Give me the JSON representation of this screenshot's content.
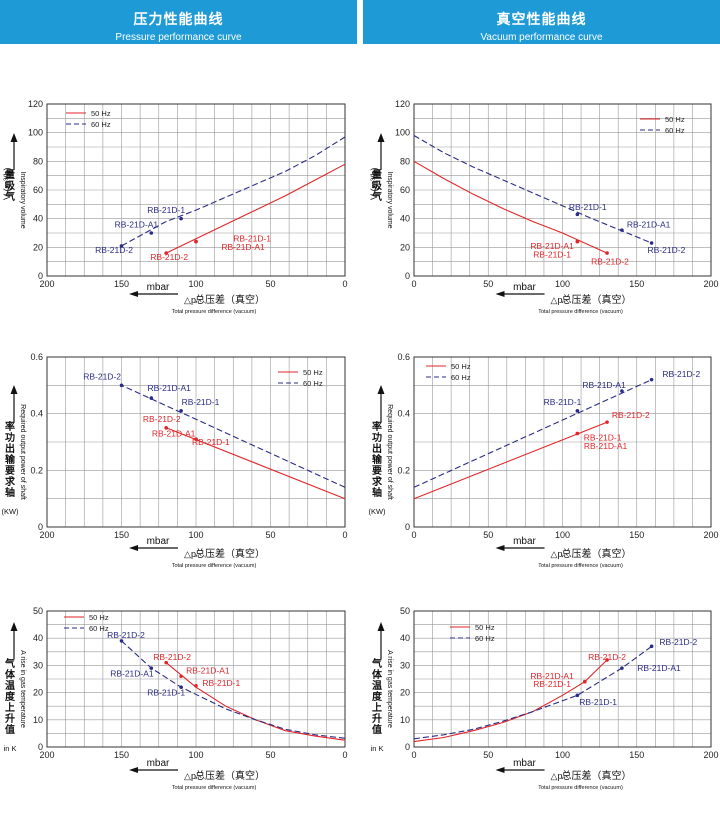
{
  "header_left": {
    "title": "压力性能曲线",
    "subtitle": "Pressure performance curve"
  },
  "header_right": {
    "title": "真空性能曲线",
    "subtitle": "Vacuum performance curve"
  },
  "x_label": {
    "unit": "mbar",
    "symbol": "△p",
    "cn": "总压差（真空）",
    "en": "Total pressure difference (vacuum)"
  },
  "colors": {
    "hz50": "#E0262A",
    "hz60": "#2A2B86",
    "grid": "#999999",
    "header": "#1E9AD6"
  },
  "chart_data": [
    {
      "id": "pressure-volume",
      "type": "line",
      "x_reversed": true,
      "xlim": [
        0,
        200
      ],
      "xticks": [
        200,
        150,
        100,
        50,
        0
      ],
      "ylim": [
        0,
        120
      ],
      "yticks": [
        0,
        20,
        40,
        60,
        80,
        100,
        120
      ],
      "ylabel_cn": "量吸气",
      "ylabel_unit": "V (m³/h)",
      "ylabel_en": "Inspiratory volume",
      "legend": [
        "50 Hz",
        "60 Hz"
      ],
      "legend_position": "top-left",
      "series": [
        {
          "name": "50 Hz",
          "x": [
            0,
            20,
            40,
            60,
            80,
            100,
            120
          ],
          "y": [
            78,
            67,
            56,
            46,
            36,
            26,
            16
          ]
        },
        {
          "name": "60 Hz",
          "x": [
            0,
            20,
            40,
            60,
            80,
            100,
            120,
            150
          ],
          "y": [
            97,
            84,
            73,
            64,
            55,
            46,
            38,
            21
          ]
        }
      ],
      "points": [
        {
          "label": "RB-21D-1",
          "x": 100,
          "y": 24,
          "series": "50 Hz",
          "lx": 75,
          "ly": 24,
          "anchor": "start"
        },
        {
          "label": "RB-21D-A1",
          "x": 100,
          "y": 24,
          "series": "50 Hz",
          "lx": 83,
          "ly": 18,
          "anchor": "start"
        },
        {
          "label": "RB-21D-2",
          "x": 120,
          "y": 16,
          "series": "50 Hz",
          "lx": 118,
          "ly": 11,
          "anchor": "middle"
        },
        {
          "label": "RB-21D-1",
          "x": 110,
          "y": 40,
          "series": "60 Hz",
          "lx": 120,
          "ly": 44,
          "anchor": "middle"
        },
        {
          "label": "RB-21D-A1",
          "x": 130,
          "y": 30,
          "series": "60 Hz",
          "lx": 140,
          "ly": 34,
          "anchor": "middle"
        },
        {
          "label": "RB-21D-2",
          "x": 150,
          "y": 21,
          "series": "60 Hz",
          "lx": 155,
          "ly": 16,
          "anchor": "middle"
        }
      ]
    },
    {
      "id": "vacuum-volume",
      "type": "line",
      "x_reversed": false,
      "xlim": [
        0,
        200
      ],
      "xticks": [
        0,
        50,
        100,
        150,
        200
      ],
      "ylim": [
        0,
        120
      ],
      "yticks": [
        0,
        20,
        40,
        60,
        80,
        100,
        120
      ],
      "ylabel_cn": "量吸气",
      "ylabel_unit": "V (m³/h)",
      "ylabel_en": "Inspiratory volume",
      "legend": [
        "50 Hz",
        "60 Hz"
      ],
      "legend_position": "top-right",
      "series": [
        {
          "name": "50 Hz",
          "x": [
            0,
            20,
            40,
            60,
            80,
            100,
            130
          ],
          "y": [
            80,
            68,
            57,
            47,
            38,
            30,
            16
          ]
        },
        {
          "name": "60 Hz",
          "x": [
            0,
            20,
            40,
            60,
            80,
            100,
            120,
            160
          ],
          "y": [
            98,
            86,
            76,
            67,
            58,
            49,
            40,
            23
          ]
        }
      ],
      "points": [
        {
          "label": "RB-21D-A1",
          "x": 110,
          "y": 24,
          "series": "50 Hz",
          "lx": 93,
          "ly": 19,
          "anchor": "middle"
        },
        {
          "label": "RB-21D-1",
          "x": 110,
          "y": 24,
          "series": "50 Hz",
          "lx": 93,
          "ly": 13,
          "anchor": "middle"
        },
        {
          "label": "RB-21D-2",
          "x": 130,
          "y": 16,
          "series": "50 Hz",
          "lx": 132,
          "ly": 8,
          "anchor": "middle"
        },
        {
          "label": "RB-21D-1",
          "x": 110,
          "y": 43,
          "series": "60 Hz",
          "lx": 117,
          "ly": 46,
          "anchor": "middle"
        },
        {
          "label": "RB-21D-A1",
          "x": 140,
          "y": 32,
          "series": "60 Hz",
          "lx": 158,
          "ly": 34,
          "anchor": "middle"
        },
        {
          "label": "RB-21D-2",
          "x": 160,
          "y": 23,
          "series": "60 Hz",
          "lx": 170,
          "ly": 16,
          "anchor": "middle"
        }
      ]
    },
    {
      "id": "pressure-power",
      "type": "line",
      "x_reversed": true,
      "xlim": [
        0,
        200
      ],
      "xticks": [
        200,
        150,
        100,
        50,
        0
      ],
      "ylim": [
        0,
        0.6
      ],
      "yticks": [
        0,
        0.2,
        0.4,
        0.6
      ],
      "ylabel_cn": "率功出输要求轴",
      "ylabel_unit": "(KW)",
      "ylabel_en": "Required output power of shaft",
      "legend": [
        "50 Hz",
        "60 Hz"
      ],
      "legend_position": "top-right",
      "series": [
        {
          "name": "50 Hz",
          "x": [
            0,
            120
          ],
          "y": [
            0.1,
            0.35
          ]
        },
        {
          "name": "60 Hz",
          "x": [
            0,
            150
          ],
          "y": [
            0.14,
            0.5
          ]
        }
      ],
      "points": [
        {
          "label": "RB-21D-2",
          "x": 120,
          "y": 0.35,
          "series": "50 Hz",
          "lx": 123,
          "ly": 0.37,
          "anchor": "middle"
        },
        {
          "label": "RB-21D-A1",
          "x": 100,
          "y": 0.31,
          "series": "50 Hz",
          "lx": 115,
          "ly": 0.32,
          "anchor": "middle"
        },
        {
          "label": "RB-21D-1",
          "x": 100,
          "y": 0.31,
          "series": "50 Hz",
          "lx": 90,
          "ly": 0.29,
          "anchor": "middle"
        },
        {
          "label": "RB-21D-2",
          "x": 150,
          "y": 0.5,
          "series": "60 Hz",
          "lx": 163,
          "ly": 0.52,
          "anchor": "middle"
        },
        {
          "label": "RB-21D-A1",
          "x": 130,
          "y": 0.455,
          "series": "60 Hz",
          "lx": 118,
          "ly": 0.48,
          "anchor": "middle"
        },
        {
          "label": "RB-21D-1",
          "x": 110,
          "y": 0.41,
          "series": "60 Hz",
          "lx": 97,
          "ly": 0.43,
          "anchor": "middle"
        }
      ]
    },
    {
      "id": "vacuum-power",
      "type": "line",
      "x_reversed": false,
      "xlim": [
        0,
        200
      ],
      "xticks": [
        0,
        50,
        100,
        150,
        200
      ],
      "ylim": [
        0,
        0.6
      ],
      "yticks": [
        0,
        0.2,
        0.4,
        0.6
      ],
      "ylabel_cn": "率功出输要求轴",
      "ylabel_unit": "(KW)",
      "ylabel_en": "Required output power of shaft",
      "legend": [
        "50 Hz",
        "60 Hz"
      ],
      "legend_position": "top-left",
      "series": [
        {
          "name": "50 Hz",
          "x": [
            0,
            130
          ],
          "y": [
            0.1,
            0.37
          ]
        },
        {
          "name": "60 Hz",
          "x": [
            0,
            160
          ],
          "y": [
            0.14,
            0.52
          ]
        }
      ],
      "points": [
        {
          "label": "RB-21D-2",
          "x": 130,
          "y": 0.37,
          "series": "50 Hz",
          "lx": 146,
          "ly": 0.385,
          "anchor": "middle"
        },
        {
          "label": "RB-21D-1",
          "x": 110,
          "y": 0.33,
          "series": "50 Hz",
          "lx": 127,
          "ly": 0.305,
          "anchor": "middle"
        },
        {
          "label": "RB-21D-A1",
          "x": 110,
          "y": 0.33,
          "series": "50 Hz",
          "lx": 129,
          "ly": 0.275,
          "anchor": "middle"
        },
        {
          "label": "RB-21D-2",
          "x": 160,
          "y": 0.52,
          "series": "60 Hz",
          "lx": 180,
          "ly": 0.53,
          "anchor": "middle"
        },
        {
          "label": "RB-21D-A1",
          "x": 140,
          "y": 0.48,
          "series": "60 Hz",
          "lx": 128,
          "ly": 0.49,
          "anchor": "middle"
        },
        {
          "label": "RB-21D-1",
          "x": 110,
          "y": 0.41,
          "series": "60 Hz",
          "lx": 100,
          "ly": 0.43,
          "anchor": "middle"
        }
      ]
    },
    {
      "id": "pressure-temperature",
      "type": "line",
      "x_reversed": true,
      "xlim": [
        0,
        200
      ],
      "xticks": [
        200,
        150,
        100,
        50,
        0
      ],
      "ylim": [
        0,
        50
      ],
      "yticks": [
        0,
        10,
        20,
        30,
        40,
        50
      ],
      "ylabel_cn": "气体温度上升值",
      "ylabel_unit": "in K",
      "ylabel_en": "A rise in gas temperature",
      "legend": [
        "50 Hz",
        "60 Hz"
      ],
      "legend_position": "top-left",
      "series": [
        {
          "name": "50 Hz",
          "x": [
            0,
            20,
            40,
            60,
            80,
            100,
            120
          ],
          "y": [
            2.5,
            4,
            6,
            10,
            15,
            22,
            31
          ]
        },
        {
          "name": "60 Hz",
          "x": [
            0,
            20,
            40,
            60,
            80,
            110,
            130,
            150
          ],
          "y": [
            3.2,
            4.5,
            6.5,
            10,
            14,
            22,
            29,
            39
          ]
        }
      ],
      "points": [
        {
          "label": "RB-21D-2",
          "x": 120,
          "y": 31,
          "series": "50 Hz",
          "lx": 116,
          "ly": 32,
          "anchor": "middle"
        },
        {
          "label": "RB-21D-A1",
          "x": 110,
          "y": 26,
          "series": "50 Hz",
          "lx": 92,
          "ly": 27,
          "anchor": "middle"
        },
        {
          "label": "RB-21D-1",
          "x": 100,
          "y": 22.5,
          "series": "50 Hz",
          "lx": 83,
          "ly": 22.5,
          "anchor": "middle"
        },
        {
          "label": "RB-21D-2",
          "x": 150,
          "y": 39,
          "series": "60 Hz",
          "lx": 147,
          "ly": 40,
          "anchor": "middle"
        },
        {
          "label": "RB-21D-A1",
          "x": 130,
          "y": 29,
          "series": "60 Hz",
          "lx": 143,
          "ly": 26,
          "anchor": "middle"
        },
        {
          "label": "RB-21D-1",
          "x": 110,
          "y": 22,
          "series": "60 Hz",
          "lx": 120,
          "ly": 19,
          "anchor": "middle"
        }
      ]
    },
    {
      "id": "vacuum-temperature",
      "type": "line",
      "x_reversed": false,
      "xlim": [
        0,
        200
      ],
      "xticks": [
        0,
        50,
        100,
        150,
        200
      ],
      "ylim": [
        0,
        50
      ],
      "yticks": [
        0,
        10,
        20,
        30,
        40,
        50
      ],
      "ylabel_cn": "气体温度上升值",
      "ylabel_unit": "in K",
      "ylabel_en": "A rise in gas temperature",
      "legend": [
        "50 Hz",
        "60 Hz"
      ],
      "legend_position": "top-left",
      "series": [
        {
          "name": "50 Hz",
          "x": [
            0,
            20,
            40,
            60,
            80,
            100,
            115,
            130
          ],
          "y": [
            2,
            3.5,
            6,
            9,
            13,
            19,
            24,
            32
          ]
        },
        {
          "name": "60 Hz",
          "x": [
            0,
            20,
            40,
            60,
            80,
            110,
            140,
            160
          ],
          "y": [
            3,
            4.5,
            6.5,
            9.5,
            13,
            19,
            29,
            37
          ]
        }
      ],
      "points": [
        {
          "label": "RB-21D-2",
          "x": 130,
          "y": 32,
          "series": "50 Hz",
          "lx": 130,
          "ly": 32,
          "anchor": "middle"
        },
        {
          "label": "RB-21D-A1",
          "x": 115,
          "y": 24,
          "series": "50 Hz",
          "lx": 93,
          "ly": 25,
          "anchor": "middle"
        },
        {
          "label": "RB-21D-1",
          "x": 115,
          "y": 24,
          "series": "50 Hz",
          "lx": 93,
          "ly": 22,
          "anchor": "middle"
        },
        {
          "label": "RB-21D-2",
          "x": 160,
          "y": 37,
          "series": "60 Hz",
          "lx": 178,
          "ly": 37.5,
          "anchor": "middle"
        },
        {
          "label": "RB-21D-A1",
          "x": 140,
          "y": 29,
          "series": "60 Hz",
          "lx": 165,
          "ly": 28,
          "anchor": "middle"
        },
        {
          "label": "RB-21D-1",
          "x": 110,
          "y": 19,
          "series": "60 Hz",
          "lx": 124,
          "ly": 15.5,
          "anchor": "middle"
        }
      ]
    }
  ]
}
